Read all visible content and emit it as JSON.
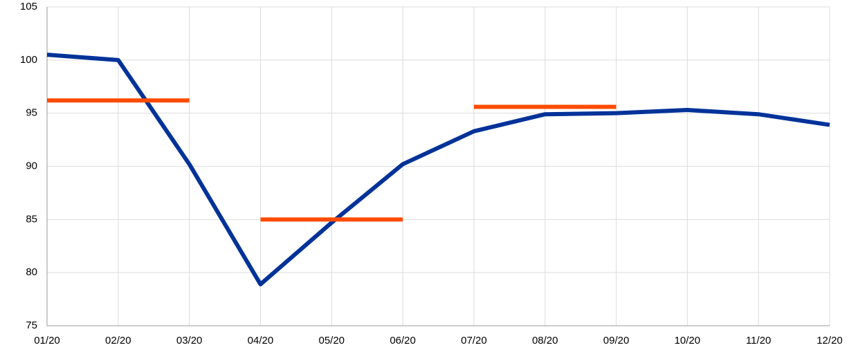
{
  "chart_data": {
    "type": "line",
    "categories": [
      "01/20",
      "02/20",
      "03/20",
      "04/20",
      "05/20",
      "06/20",
      "07/20",
      "08/20",
      "09/20",
      "10/20",
      "11/20",
      "12/20"
    ],
    "series": [
      {
        "color": "#003299",
        "values": [
          100.5,
          100.0,
          90.2,
          78.9,
          84.7,
          90.2,
          93.3,
          94.9,
          95.0,
          95.3,
          94.9,
          93.9
        ]
      },
      {
        "color": "#ff4b00",
        "style": "levels",
        "values": [
          96.2,
          96.2,
          96.2,
          85.0,
          85.0,
          85.0,
          95.6,
          95.6,
          95.6,
          null,
          null,
          null
        ]
      }
    ],
    "ylim": [
      75,
      105
    ],
    "yticks": [
      75,
      80,
      85,
      90,
      95,
      100,
      105
    ],
    "grid": true
  }
}
